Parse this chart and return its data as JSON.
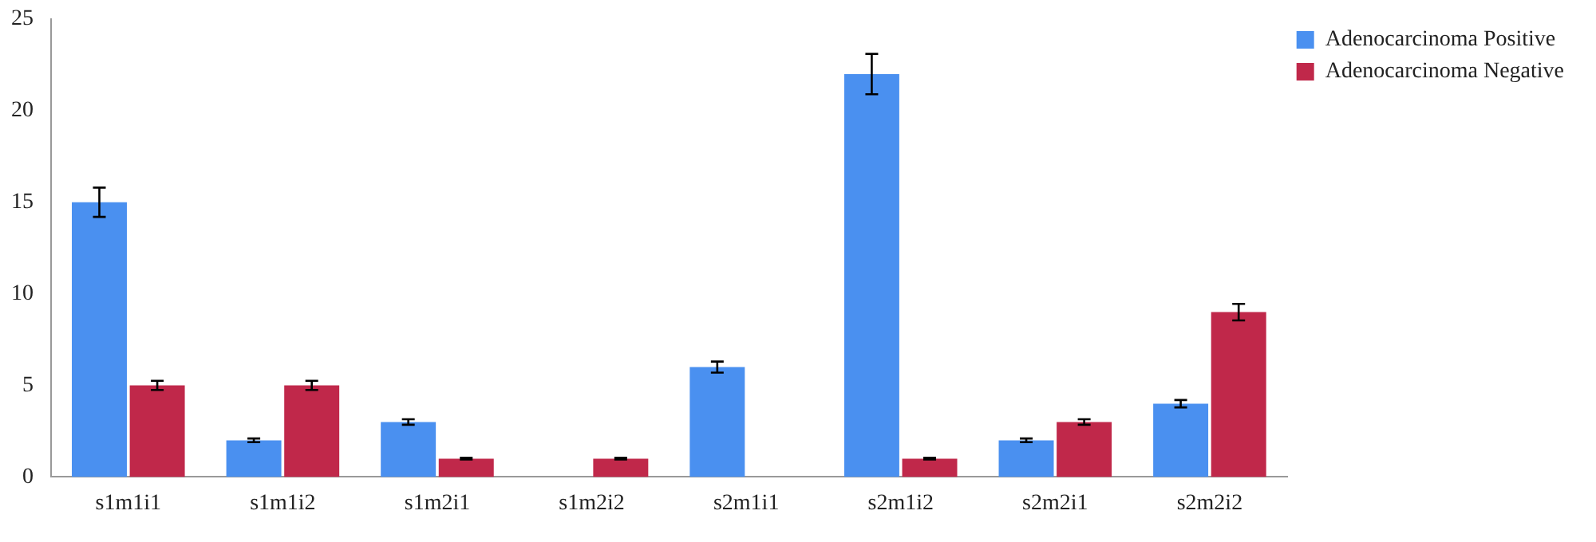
{
  "chart_data": {
    "type": "bar",
    "categories": [
      "s1m1i1",
      "s1m1i2",
      "s1m2i1",
      "s1m2i2",
      "s2m1i1",
      "s2m1i2",
      "s2m2i1",
      "s2m2i2"
    ],
    "series": [
      {
        "name": "Adenocarcinoma Positive",
        "color": "#4a90f0",
        "values": [
          15,
          2,
          3,
          0,
          6,
          22,
          2,
          4
        ],
        "errors": [
          0.8,
          0.1,
          0.15,
          null,
          0.3,
          1.1,
          0.1,
          0.2
        ]
      },
      {
        "name": "Adenocarcinoma Negative",
        "color": "#c0284a",
        "values": [
          5,
          5,
          1,
          1,
          0,
          1,
          3,
          9
        ],
        "errors": [
          0.25,
          0.25,
          0.05,
          0.05,
          null,
          0.05,
          0.15,
          0.45
        ]
      }
    ],
    "ylim": [
      0,
      25
    ],
    "yticks": [
      0,
      5,
      10,
      15,
      20,
      25
    ],
    "grid": false,
    "legend": "top right"
  }
}
